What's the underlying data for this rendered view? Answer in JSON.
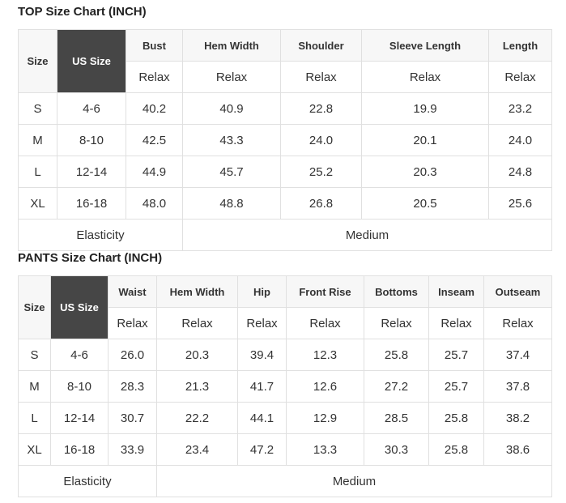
{
  "top": {
    "title": "TOP Size Chart (INCH)",
    "size_label": "Size",
    "us_size_label": "US Size",
    "columns": [
      "Bust",
      "Hem Width",
      "Shoulder",
      "Sleeve Length",
      "Length"
    ],
    "fit": [
      "Relax",
      "Relax",
      "Relax",
      "Relax",
      "Relax"
    ],
    "rows": [
      {
        "size": "S",
        "us": "4-6",
        "values": [
          "40.2",
          "40.9",
          "22.8",
          "19.9",
          "23.2"
        ]
      },
      {
        "size": "M",
        "us": "8-10",
        "values": [
          "42.5",
          "43.3",
          "24.0",
          "20.1",
          "24.0"
        ]
      },
      {
        "size": "L",
        "us": "12-14",
        "values": [
          "44.9",
          "45.7",
          "25.2",
          "20.3",
          "24.8"
        ]
      },
      {
        "size": "XL",
        "us": "16-18",
        "values": [
          "48.0",
          "48.8",
          "26.8",
          "20.5",
          "25.6"
        ]
      }
    ],
    "elasticity_label": "Elasticity",
    "elasticity_value": "Medium"
  },
  "pants": {
    "title": "PANTS Size Chart (INCH)",
    "size_label": "Size",
    "us_size_label": "US Size",
    "columns": [
      "Waist",
      "Hem Width",
      "Hip",
      "Front Rise",
      "Bottoms",
      "Inseam",
      "Outseam"
    ],
    "fit": [
      "Relax",
      "Relax",
      "Relax",
      "Relax",
      "Relax",
      "Relax",
      "Relax"
    ],
    "rows": [
      {
        "size": "S",
        "us": "4-6",
        "values": [
          "26.0",
          "20.3",
          "39.4",
          "12.3",
          "25.8",
          "25.7",
          "37.4"
        ]
      },
      {
        "size": "M",
        "us": "8-10",
        "values": [
          "28.3",
          "21.3",
          "41.7",
          "12.6",
          "27.2",
          "25.7",
          "37.8"
        ]
      },
      {
        "size": "L",
        "us": "12-14",
        "values": [
          "30.7",
          "22.2",
          "44.1",
          "12.9",
          "28.5",
          "25.8",
          "38.2"
        ]
      },
      {
        "size": "XL",
        "us": "16-18",
        "values": [
          "33.9",
          "23.4",
          "47.2",
          "13.3",
          "30.3",
          "25.8",
          "38.6"
        ]
      }
    ],
    "elasticity_label": "Elasticity",
    "elasticity_value": "Medium"
  }
}
